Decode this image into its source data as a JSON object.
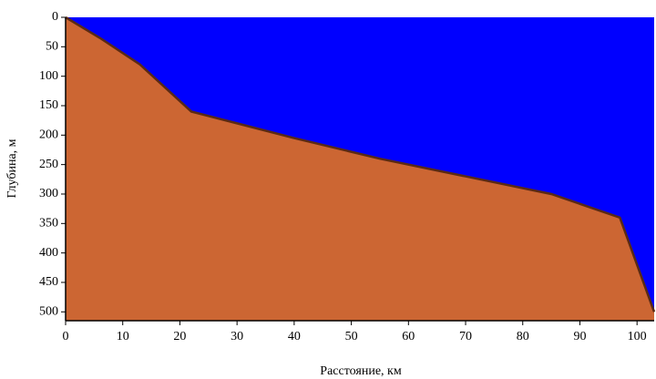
{
  "chart_data": {
    "type": "area",
    "xlabel": "Расстояние, км",
    "ylabel": "Глубина, м",
    "x": [
      0,
      6,
      13,
      22,
      30,
      40,
      55,
      70,
      85,
      91,
      97,
      103
    ],
    "values": [
      0,
      35,
      80,
      160,
      180,
      205,
      240,
      270,
      300,
      320,
      340,
      500
    ],
    "color": "#cc6633",
    "line_color": "#5a2a14",
    "water_color": "#0000ff",
    "xlim": [
      0,
      103
    ],
    "ylim": [
      0,
      515
    ],
    "y_inverted": true,
    "xticks": [
      0,
      10,
      20,
      30,
      40,
      50,
      60,
      70,
      80,
      90,
      100
    ],
    "yticks": [
      0,
      50,
      100,
      150,
      200,
      250,
      300,
      350,
      400,
      450,
      500
    ]
  }
}
